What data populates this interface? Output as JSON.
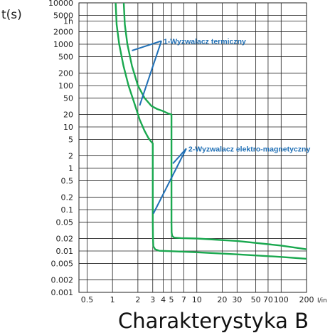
{
  "chart_data": {
    "type": "line",
    "title": "Charakterystyka B",
    "xlabel": "I/in",
    "ylabel": "t(s)",
    "x_scale": "log",
    "y_scale": "log",
    "xlim": [
      0.4,
      200
    ],
    "ylim": [
      0.001,
      10000
    ],
    "x_ticks": [
      {
        "value": 0.5,
        "label": "0.5"
      },
      {
        "value": 1,
        "label": "1"
      },
      {
        "value": 2,
        "label": "2"
      },
      {
        "value": 3,
        "label": "3"
      },
      {
        "value": 4,
        "label": "4"
      },
      {
        "value": 5,
        "label": "5"
      },
      {
        "value": 7,
        "label": "7"
      },
      {
        "value": 10,
        "label": "10"
      },
      {
        "value": 20,
        "label": "20"
      },
      {
        "value": 30,
        "label": "30"
      },
      {
        "value": 50,
        "label": "50"
      },
      {
        "value": 70,
        "label": "70"
      },
      {
        "value": 100,
        "label": "100"
      },
      {
        "value": 200,
        "label": "200"
      }
    ],
    "y_ticks": [
      {
        "value": 0.001,
        "label": "0.001"
      },
      {
        "value": 0.002,
        "label": "0.002"
      },
      {
        "value": 0.005,
        "label": "0.005"
      },
      {
        "value": 0.01,
        "label": "0.01"
      },
      {
        "value": 0.02,
        "label": "0.02"
      },
      {
        "value": 0.05,
        "label": "0.05"
      },
      {
        "value": 0.1,
        "label": "0.1"
      },
      {
        "value": 0.2,
        "label": "0.2"
      },
      {
        "value": 0.5,
        "label": "0.5"
      },
      {
        "value": 1,
        "label": "1"
      },
      {
        "value": 2,
        "label": "2"
      },
      {
        "value": 5,
        "label": "5"
      },
      {
        "value": 10,
        "label": "10"
      },
      {
        "value": 20,
        "label": "20"
      },
      {
        "value": 50,
        "label": "50"
      },
      {
        "value": 100,
        "label": "100"
      },
      {
        "value": 200,
        "label": "200"
      },
      {
        "value": 500,
        "label": "500"
      },
      {
        "value": 1000,
        "label": "1000"
      },
      {
        "value": 2000,
        "label": "2000"
      },
      {
        "value": 3600,
        "label": "1h"
      },
      {
        "value": 5000,
        "label": "5000"
      },
      {
        "value": 10000,
        "label": "10000"
      }
    ],
    "grid": true,
    "series": [
      {
        "color": "#1aa84f",
        "x": [
          1.09,
          1.12,
          1.2,
          1.35,
          1.55,
          1.8,
          2.1,
          2.4,
          2.65,
          2.85,
          3.0,
          3.0,
          3.02,
          3.05,
          3.2,
          3.6,
          5,
          10,
          30,
          100,
          200
        ],
        "y": [
          10000,
          3000,
          1000,
          300,
          100,
          40,
          15,
          8,
          5.5,
          4.5,
          4.0,
          0.05,
          0.02,
          0.013,
          0.011,
          0.0101,
          0.0099,
          0.0093,
          0.0083,
          0.0072,
          0.0065
        ]
      },
      {
        "color": "#1aa84f",
        "x": [
          1.36,
          1.4,
          1.5,
          1.7,
          2.0,
          2.4,
          2.9,
          3.4,
          4.0,
          4.6,
          5.0,
          5.0,
          5.02,
          5.1,
          5.4,
          6.5,
          10,
          30,
          100,
          200
        ],
        "y": [
          10000,
          3000,
          1000,
          300,
          100,
          50,
          32,
          27,
          24,
          21,
          20,
          0.05,
          0.028,
          0.023,
          0.021,
          0.0205,
          0.02,
          0.0175,
          0.0135,
          0.011
        ]
      }
    ],
    "annotations": [
      {
        "text": "1-Wyzwalacz termiczny",
        "label_at": [
          3.8,
          1200
        ],
        "pointers": [
          [
            1.7,
            700
          ],
          [
            2.1,
            33
          ]
        ]
      },
      {
        "text": "2-Wyzwalacz elektro-magnetyczny",
        "label_at": [
          7.5,
          3.0
        ],
        "pointers": [
          [
            5.2,
            1.3
          ],
          [
            3.05,
            0.08
          ]
        ]
      }
    ]
  }
}
